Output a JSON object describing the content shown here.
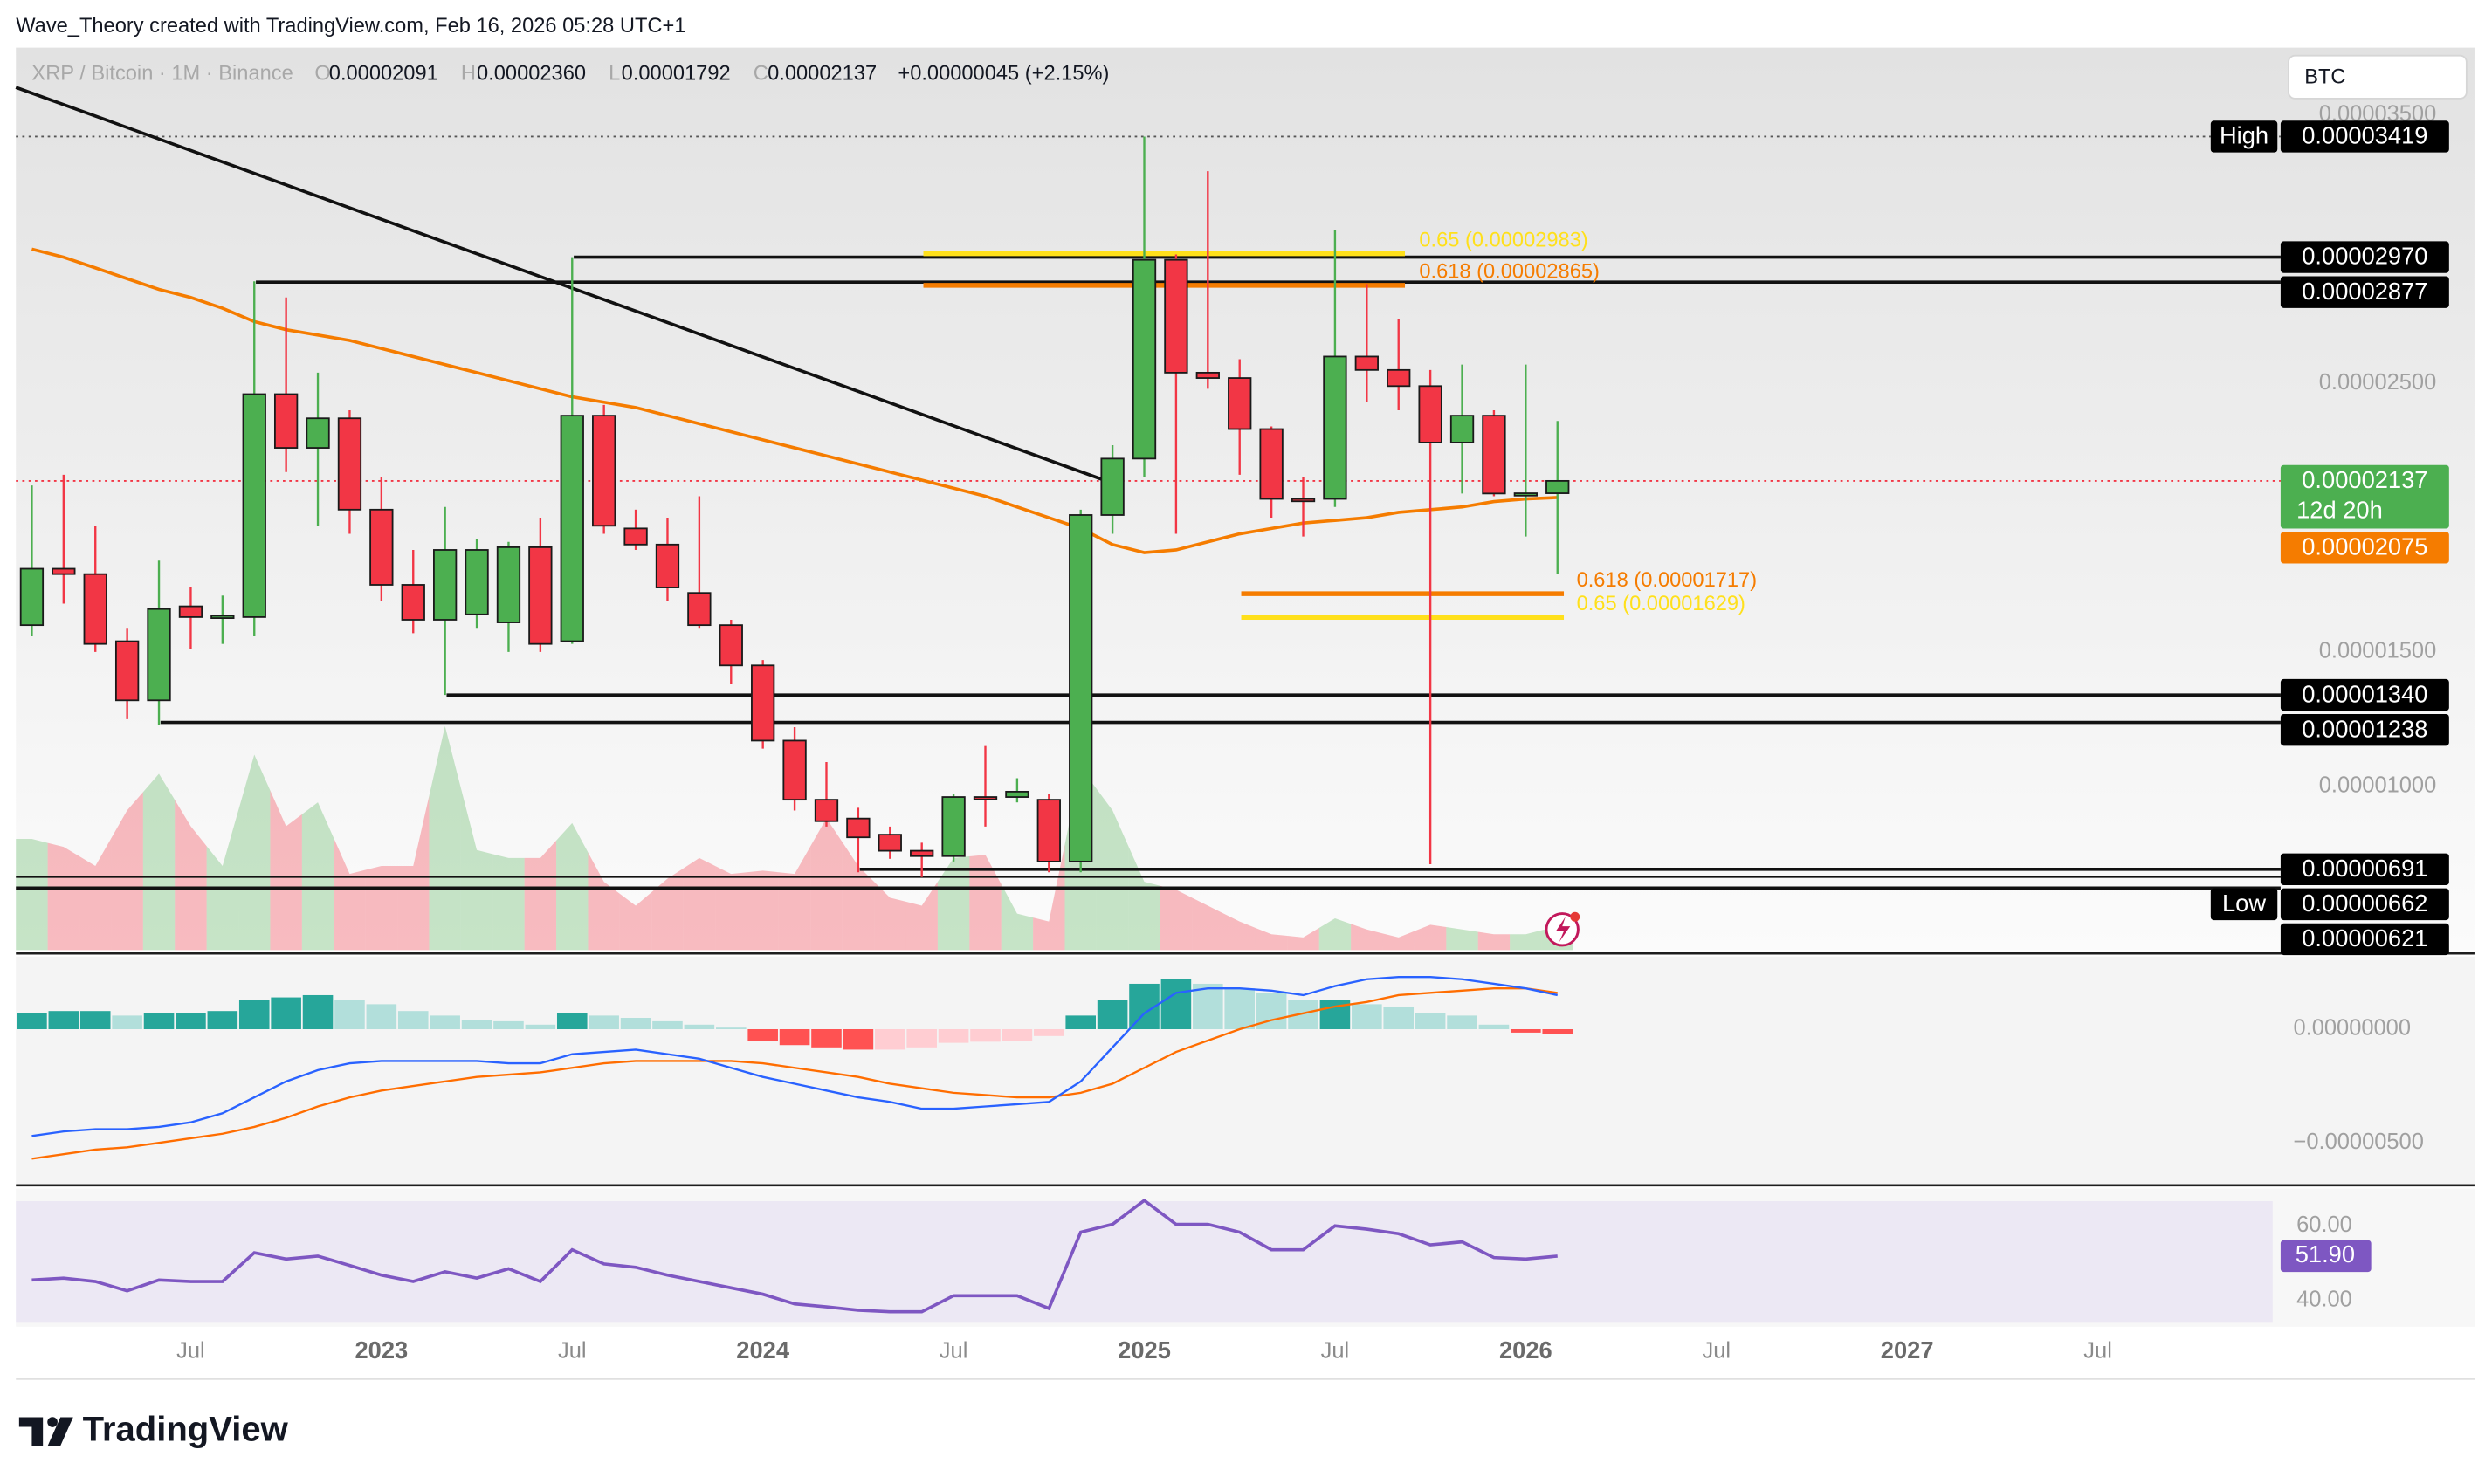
{
  "header": {
    "attribution": "Wave_Theory created with TradingView.com, Feb 16, 2026 05:28 UTC+1",
    "currency": "BTC"
  },
  "footer": {
    "brand": "TradingView"
  },
  "chart_data": {
    "type": "candlestick",
    "legend": {
      "symbol": "XRP / Bitcoin · 1M · Binance",
      "open_key": "O",
      "open": "0.00002091",
      "high_key": "H",
      "high": "0.00002360",
      "low_key": "L",
      "low": "0.00001792",
      "close_key": "C",
      "close": "0.00002137",
      "change": "+0.00000045 (+2.15%)"
    },
    "up_color": "#4caf50",
    "down_color": "#f23645",
    "open": [
      1.6e-05,
      1.81e-05,
      1.79e-05,
      1.54e-05,
      1.32e-05,
      1.67e-05,
      1.63e-05,
      1.63e-05,
      2.46e-05,
      2.26e-05,
      2.37e-05,
      2.03e-05,
      1.75e-05,
      1.62e-05,
      1.64e-05,
      1.61e-05,
      1.89e-05,
      1.54e-05,
      2.38e-05,
      1.96e-05,
      1.9e-05,
      1.72e-05,
      1.6e-05,
      1.45e-05,
      1.17e-05,
      9.5e-06,
      8.8e-06,
      8.2e-06,
      7.6e-06,
      7.4e-06,
      9.6e-06,
      9.6e-06,
      9.5e-06,
      7.2e-06,
      2.01e-05,
      2.22e-05,
      2.96e-05,
      2.54e-05,
      2.52e-05,
      2.33e-05,
      2.07e-05,
      2.07e-05,
      2.6e-05,
      2.55e-05,
      2.49e-05,
      2.28e-05,
      2.38e-05,
      2.09e-05,
      2.091e-05
    ],
    "high": [
      2.12e-05,
      2.16e-05,
      1.97e-05,
      1.59e-05,
      1.84e-05,
      1.74e-05,
      1.71e-05,
      2.88e-05,
      2.82e-05,
      2.54e-05,
      2.4e-05,
      2.15e-05,
      1.88e-05,
      2.04e-05,
      1.92e-05,
      1.91e-05,
      2e-05,
      2.97e-05,
      2.42e-05,
      2.03e-05,
      2e-05,
      2.08e-05,
      1.62e-05,
      1.47e-05,
      1.22e-05,
      1.09e-05,
      9.2e-06,
      8.5e-06,
      7.9e-06,
      9.7e-06,
      1.15e-05,
      1.03e-05,
      9.7e-06,
      2.03e-05,
      2.27e-05,
      3.419e-05,
      2.98e-05,
      3.29e-05,
      2.59e-05,
      2.34e-05,
      2.15e-05,
      3.07e-05,
      2.87e-05,
      2.74e-05,
      2.55e-05,
      2.57e-05,
      2.4e-05,
      2.57e-05,
      2.36e-05
    ],
    "low": [
      1.56e-05,
      1.68e-05,
      1.5e-05,
      1.25e-05,
      1.23e-05,
      1.51e-05,
      1.53e-05,
      1.56e-05,
      2.17e-05,
      1.97e-05,
      1.94e-05,
      1.69e-05,
      1.57e-05,
      1.34e-05,
      1.59e-05,
      1.5e-05,
      1.5e-05,
      1.53e-05,
      1.94e-05,
      1.88e-05,
      1.69e-05,
      1.59e-05,
      1.38e-05,
      1.14e-05,
      9.1e-06,
      8.5e-06,
      6.8e-06,
      7.3e-06,
      6.62e-06,
      7.2e-06,
      8.5e-06,
      9.4e-06,
      6.8e-06,
      6.8e-06,
      1.94e-05,
      2.15e-05,
      1.94e-05,
      2.48e-05,
      2.16e-05,
      2e-05,
      1.93e-05,
      2.04e-05,
      2.43e-05,
      2.4e-05,
      7.1e-06,
      2.09e-05,
      2.08e-05,
      1.93e-05,
      1.792e-05
    ],
    "close": [
      1.81e-05,
      1.79e-05,
      1.53e-05,
      1.32e-05,
      1.66e-05,
      1.63e-05,
      1.635e-05,
      2.46e-05,
      2.26e-05,
      2.37e-05,
      2.03e-05,
      1.75e-05,
      1.62e-05,
      1.88e-05,
      1.88e-05,
      1.89e-05,
      1.53e-05,
      2.38e-05,
      1.97e-05,
      1.9e-05,
      1.74e-05,
      1.6e-05,
      1.45e-05,
      1.17e-05,
      9.5e-06,
      8.7e-06,
      8.1e-06,
      7.6e-06,
      7.4e-06,
      9.6e-06,
      9.58e-06,
      9.8e-06,
      7.2e-06,
      2.01e-05,
      2.22e-05,
      2.96e-05,
      2.54e-05,
      2.52e-05,
      2.33e-05,
      2.07e-05,
      2.065e-05,
      2.6e-05,
      2.55e-05,
      2.49e-05,
      2.28e-05,
      2.38e-05,
      2.09e-05,
      2.091e-05,
      2.137e-05
    ],
    "xlim": [
      -0.5,
      70.5
    ],
    "xticks": [
      {
        "value": 5,
        "label": "Jul"
      },
      {
        "value": 11,
        "label": "2023"
      },
      {
        "value": 17,
        "label": "Jul"
      },
      {
        "value": 23,
        "label": "2024"
      },
      {
        "value": 29,
        "label": "Jul"
      },
      {
        "value": 35,
        "label": "2025"
      },
      {
        "value": 41,
        "label": "Jul"
      },
      {
        "value": 47,
        "label": "2026"
      },
      {
        "value": 53,
        "label": "Jul"
      },
      {
        "value": 59,
        "label": "2027"
      },
      {
        "value": 65,
        "label": "Jul"
      }
    ],
    "ylim": [
      3.9e-06,
      3.75e-05
    ],
    "yticks": [
      {
        "value": 3.5e-05,
        "label": "0.00003500"
      },
      {
        "value": 2.5e-05,
        "label": "0.00002500"
      },
      {
        "value": 1.5e-05,
        "label": "0.00001500"
      },
      {
        "value": 1e-05,
        "label": "0.00001000"
      }
    ],
    "moving_average": {
      "color": "#f57c00",
      "values": [
        3e-05,
        2.97e-05,
        2.93e-05,
        2.89e-05,
        2.85e-05,
        2.82e-05,
        2.78e-05,
        2.73e-05,
        2.7e-05,
        2.68e-05,
        2.66e-05,
        2.63e-05,
        2.6e-05,
        2.57e-05,
        2.54e-05,
        2.51e-05,
        2.48e-05,
        2.45e-05,
        2.43e-05,
        2.41e-05,
        2.38e-05,
        2.35e-05,
        2.32e-05,
        2.29e-05,
        2.26e-05,
        2.23e-05,
        2.2e-05,
        2.17e-05,
        2.14e-05,
        2.11e-05,
        2.08e-05,
        2.04e-05,
        2e-05,
        1.96e-05,
        1.9e-05,
        1.87e-05,
        1.88e-05,
        1.91e-05,
        1.94e-05,
        1.96e-05,
        1.98e-05,
        1.99e-05,
        2e-05,
        2.02e-05,
        2.03e-05,
        2.04e-05,
        2.06e-05,
        2.07e-05,
        2.075e-05
      ]
    },
    "volume": {
      "values": [
        70,
        65,
        53,
        88,
        111,
        78,
        53,
        123,
        78,
        93,
        48,
        53,
        53,
        141,
        63,
        58,
        58,
        80,
        43,
        28,
        45,
        58,
        48,
        50,
        48,
        83,
        53,
        33,
        28,
        58,
        60,
        23,
        18,
        115,
        88,
        43,
        38,
        28,
        18,
        10,
        8,
        20,
        13,
        8,
        16,
        13,
        10,
        10,
        15
      ]
    },
    "extreme_labels": {
      "high": "High",
      "low": "Low"
    },
    "countdown": "12d 20h",
    "levels": [
      {
        "value": 2.97e-05,
        "label": "0.00002970"
      },
      {
        "value": 2.877e-05,
        "label": "0.00002877"
      },
      {
        "value": 1.34e-05,
        "label": "0.00001340"
      },
      {
        "value": 1.238e-05,
        "label": "0.00001238"
      },
      {
        "value": 6.91e-06,
        "label": "0.00000691"
      },
      {
        "value": 6.21e-06,
        "label": "0.00000621"
      }
    ],
    "fib_levels": [
      {
        "value": 2.983e-05,
        "label": "0.65 (0.00002983)",
        "color": "#ffe01b"
      },
      {
        "value": 2.865e-05,
        "label": "0.618 (0.00002865)",
        "color": "#f57c00"
      },
      {
        "value": 1.717e-05,
        "label": "0.618 (0.00001717)",
        "color": "#f57c00"
      },
      {
        "value": 1.629e-05,
        "label": "0.65 (0.00001629)",
        "color": "#ffe01b"
      }
    ],
    "macd": {
      "ylim": [
        -6.8e-06,
        3.2e-06
      ],
      "yticks": [
        {
          "value": 0,
          "label": "0.00000000"
        },
        {
          "value": -5e-06,
          "label": "−0.00000500"
        }
      ],
      "macd": {
        "color": "#2962ff",
        "values": [
          -4.7e-06,
          -4.5e-06,
          -4.4e-06,
          -4.4e-06,
          -4.3e-06,
          -4.1e-06,
          -3.7e-06,
          -3e-06,
          -2.3e-06,
          -1.8e-06,
          -1.5e-06,
          -1.4e-06,
          -1.4e-06,
          -1.4e-06,
          -1.4e-06,
          -1.5e-06,
          -1.5e-06,
          -1.1e-06,
          -1e-06,
          -9e-07,
          -1.1e-06,
          -1.3e-06,
          -1.7e-06,
          -2.1e-06,
          -2.4e-06,
          -2.7e-06,
          -3e-06,
          -3.2e-06,
          -3.5e-06,
          -3.5e-06,
          -3.4e-06,
          -3.3e-06,
          -3.2e-06,
          -2.3e-06,
          -8e-07,
          7e-07,
          1.6e-06,
          1.8e-06,
          1.8e-06,
          1.7e-06,
          1.5e-06,
          1.9e-06,
          2.2e-06,
          2.3e-06,
          2.3e-06,
          2.2e-06,
          2e-06,
          1.8e-06,
          1.5e-06
        ]
      },
      "signal": {
        "color": "#ff6d00",
        "values": [
          -5.7e-06,
          -5.5e-06,
          -5.3e-06,
          -5.2e-06,
          -5e-06,
          -4.8e-06,
          -4.6e-06,
          -4.3e-06,
          -3.9e-06,
          -3.4e-06,
          -3e-06,
          -2.7e-06,
          -2.5e-06,
          -2.3e-06,
          -2.1e-06,
          -2e-06,
          -1.9e-06,
          -1.7e-06,
          -1.5e-06,
          -1.4e-06,
          -1.4e-06,
          -1.4e-06,
          -1.4e-06,
          -1.5e-06,
          -1.7e-06,
          -1.9e-06,
          -2.1e-06,
          -2.4e-06,
          -2.6e-06,
          -2.8e-06,
          -2.9e-06,
          -3e-06,
          -3e-06,
          -2.8e-06,
          -2.4e-06,
          -1.7e-06,
          -1e-06,
          -5e-07,
          0,
          4e-07,
          7e-07,
          1e-06,
          1.2e-06,
          1.5e-06,
          1.6e-06,
          1.7e-06,
          1.8e-06,
          1.8e-06,
          1.6e-06
        ]
      },
      "histogram": {
        "values": [
          7e-07,
          8e-07,
          8e-07,
          6e-07,
          7e-07,
          7e-07,
          8e-07,
          1.3e-06,
          1.4e-06,
          1.5e-06,
          1.3e-06,
          1.1e-06,
          8e-07,
          6e-07,
          4e-07,
          3.5e-07,
          2e-07,
          7e-07,
          6e-07,
          5e-07,
          3.5e-07,
          2e-07,
          7e-08,
          -5e-07,
          -7e-07,
          -8e-07,
          -9e-07,
          -9e-07,
          -8e-07,
          -6e-07,
          -5.5e-07,
          -5e-07,
          -3e-07,
          6e-07,
          1.3e-06,
          2e-06,
          2.2e-06,
          2e-06,
          1.8e-06,
          1.6e-06,
          1.3e-06,
          1.3e-06,
          1.1e-06,
          1e-06,
          7e-07,
          6e-07,
          2e-07,
          -1.5e-07,
          -2e-07
        ]
      }
    },
    "rsi": {
      "color": "#7e57c2",
      "ylim": [
        33,
        70
      ],
      "yticks": [
        {
          "value": 60,
          "label": "60.00"
        },
        {
          "value": 40,
          "label": "40.00"
        }
      ],
      "values": [
        45.5,
        46.0,
        45.1,
        42.6,
        45.5,
        45.1,
        45.1,
        52.8,
        51.1,
        51.9,
        49.4,
        46.8,
        45.1,
        47.7,
        46.0,
        48.5,
        45.1,
        53.6,
        49.8,
        48.9,
        46.8,
        45.1,
        43.4,
        41.7,
        39.1,
        38.3,
        37.4,
        37.0,
        37.0,
        41.3,
        41.3,
        41.3,
        37.9,
        58.3,
        60.4,
        66.8,
        60.4,
        60.4,
        58.3,
        53.6,
        53.6,
        60.0,
        59.1,
        57.9,
        54.9,
        55.7,
        51.5,
        51.1,
        51.9
      ],
      "value_labels": [
        null,
        null,
        null,
        null,
        null,
        null,
        null,
        null,
        null,
        null,
        null,
        null,
        null,
        null,
        null,
        null,
        null,
        null,
        null,
        null,
        null,
        null,
        null,
        null,
        null,
        null,
        null,
        null,
        null,
        null,
        null,
        null,
        null,
        null,
        null,
        null,
        null,
        null,
        null,
        null,
        null,
        null,
        null,
        null,
        null,
        null,
        null,
        null,
        "51.90"
      ]
    }
  }
}
